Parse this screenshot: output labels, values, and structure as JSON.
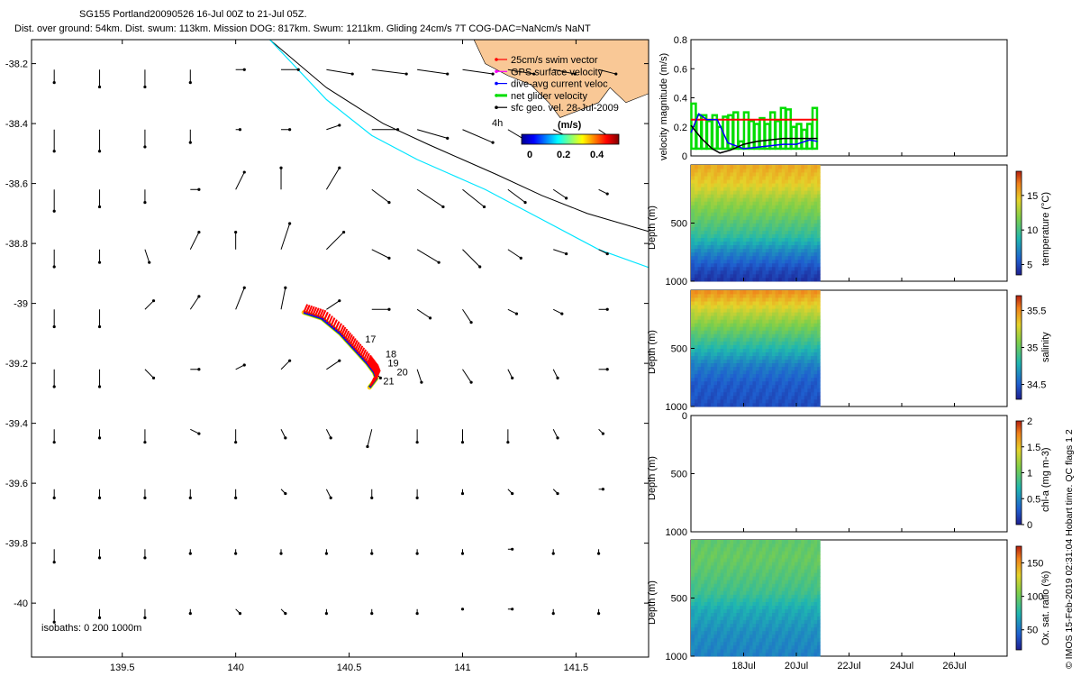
{
  "title": {
    "line1": "SG155 Portland20090526 16-Jul 00Z to 21-Jul 05Z.",
    "line2": "Dist. over ground: 54km. Dist. swum: 113km. Mission DOG: 817km. Swum: 1211km. Gliding 24cm/s 7T COG-DAC=NaNcm/s NaNT"
  },
  "copyright": "© IMOS 15-Feb-2019 02:31:04 Hobart time. QC flags 1  2",
  "colors": {
    "land": "#f9c896",
    "coast_1000m": "#00e5ff",
    "isobath_200": "#000000",
    "track_red": "#ff0000",
    "track_blue": "#0000ff",
    "track_green": "#00dd00",
    "track_yellow": "#ffcc00"
  },
  "chart_data": [
    {
      "type": "scatter",
      "name": "map",
      "xlim": [
        139.1,
        141.82
      ],
      "ylim": [
        -40.18,
        -38.12
      ],
      "xticks": [
        139.5,
        140,
        140.5,
        141,
        141.5
      ],
      "yticks": [
        -38.2,
        -38.4,
        -38.6,
        -38.8,
        -39,
        -39.2,
        -39.4,
        -39.6,
        -39.8,
        -40
      ],
      "legend": {
        "placement": "top-right",
        "items": [
          {
            "label": "25cm/s swim vector",
            "color": "#ff0000"
          },
          {
            "label": "GPS surface velocity",
            "color": "#ff00ff"
          },
          {
            "label": "dive-avg current veloc",
            "color": "#0000ff"
          },
          {
            "label": "net glider velocity",
            "color": "#00dd00"
          },
          {
            "label": "sfc geo. vel. 28-Jul-2009",
            "color": "#000000"
          }
        ],
        "vector_scale_label": "4h",
        "colorbar_title": "(m/s)",
        "colorbar_ticks": [
          0,
          0.2,
          0.4
        ]
      },
      "isobaths_label": "isobaths: 0   200   1000m",
      "track": [
        [
          140.3,
          -39.03
        ],
        [
          140.38,
          -39.05
        ],
        [
          140.46,
          -39.1
        ],
        [
          140.52,
          -39.15
        ],
        [
          140.58,
          -39.2
        ],
        [
          140.61,
          -39.23
        ],
        [
          140.62,
          -39.25
        ],
        [
          140.59,
          -39.28
        ]
      ],
      "day_labels": [
        {
          "text": "17",
          "lon": 140.57,
          "lat": -39.13
        },
        {
          "text": "18",
          "lon": 140.66,
          "lat": -39.18
        },
        {
          "text": "19",
          "lon": 140.67,
          "lat": -39.21
        },
        {
          "text": "20",
          "lon": 140.71,
          "lat": -39.24
        },
        {
          "text": "21",
          "lon": 140.65,
          "lat": -39.27
        }
      ],
      "coast_200m": [
        [
          140.15,
          -38.12
        ],
        [
          140.4,
          -38.28
        ],
        [
          140.65,
          -38.4
        ],
        [
          140.85,
          -38.47
        ],
        [
          141.0,
          -38.52
        ],
        [
          141.15,
          -38.57
        ],
        [
          141.35,
          -38.64
        ],
        [
          141.55,
          -38.7
        ],
        [
          141.82,
          -38.76
        ]
      ],
      "coast_1000m": [
        [
          140.15,
          -38.12
        ],
        [
          140.4,
          -38.32
        ],
        [
          140.6,
          -38.44
        ],
        [
          140.8,
          -38.52
        ],
        [
          140.95,
          -38.57
        ],
        [
          141.1,
          -38.62
        ],
        [
          141.35,
          -38.72
        ],
        [
          141.6,
          -38.82
        ],
        [
          141.82,
          -38.88
        ]
      ],
      "current_field_lon": [
        139.2,
        139.4,
        139.6,
        139.8,
        140.0,
        140.2,
        140.4,
        140.6,
        140.8,
        141.0,
        141.2,
        141.4,
        141.6
      ],
      "current_field_lat": [
        -38.22,
        -38.42,
        -38.62,
        -38.82,
        -39.02,
        -39.22,
        -39.42,
        -39.62,
        -39.82,
        -40.02
      ],
      "current_field_uv": [
        [
          [
            0.0,
            -0.03
          ],
          [
            0.0,
            -0.04
          ],
          [
            0.0,
            -0.04
          ],
          [
            0.0,
            -0.03
          ],
          [
            0.02,
            0.0
          ],
          [
            0.04,
            0.0
          ],
          [
            0.06,
            -0.01
          ],
          [
            0.08,
            -0.01
          ],
          [
            0.07,
            -0.01
          ],
          [
            0.07,
            -0.01
          ],
          [
            0.06,
            -0.01
          ],
          [
            0.05,
            -0.01
          ],
          [
            0.04,
            -0.01
          ]
        ],
        [
          [
            0.0,
            -0.05
          ],
          [
            0.0,
            -0.05
          ],
          [
            0.0,
            -0.04
          ],
          [
            0.0,
            -0.03
          ],
          [
            0.01,
            0.0
          ],
          [
            0.02,
            0.0
          ],
          [
            0.03,
            0.01
          ],
          [
            0.06,
            0.0
          ],
          [
            0.07,
            -0.02
          ],
          [
            0.07,
            -0.03
          ],
          [
            0.05,
            -0.03
          ],
          [
            0.04,
            -0.02
          ],
          [
            0.03,
            -0.02
          ]
        ],
        [
          [
            0.0,
            -0.05
          ],
          [
            0.0,
            -0.04
          ],
          [
            0.0,
            -0.03
          ],
          [
            0.02,
            0.0
          ],
          [
            0.02,
            0.04
          ],
          [
            0.0,
            0.05
          ],
          [
            0.03,
            0.05
          ],
          [
            0.04,
            -0.03
          ],
          [
            0.06,
            -0.04
          ],
          [
            0.05,
            -0.04
          ],
          [
            0.04,
            -0.03
          ],
          [
            0.03,
            -0.02
          ],
          [
            0.02,
            -0.01
          ]
        ],
        [
          [
            0.0,
            -0.04
          ],
          [
            0.0,
            -0.03
          ],
          [
            0.01,
            -0.03
          ],
          [
            0.02,
            0.04
          ],
          [
            0.0,
            0.04
          ],
          [
            0.02,
            0.06
          ],
          [
            0.04,
            0.04
          ],
          [
            0.04,
            -0.02
          ],
          [
            0.05,
            -0.03
          ],
          [
            0.04,
            -0.04
          ],
          [
            0.03,
            -0.02
          ],
          [
            0.03,
            -0.01
          ],
          [
            0.02,
            -0.01
          ]
        ],
        [
          [
            0.0,
            -0.04
          ],
          [
            0.0,
            -0.04
          ],
          [
            0.02,
            0.02
          ],
          [
            0.02,
            0.03
          ],
          [
            0.02,
            0.05
          ],
          [
            0.01,
            0.05
          ],
          [
            0.03,
            0.02
          ],
          [
            0.04,
            0.0
          ],
          [
            0.03,
            -0.02
          ],
          [
            0.02,
            -0.03
          ],
          [
            0.02,
            -0.01
          ],
          [
            0.02,
            -0.01
          ],
          [
            0.02,
            0.0
          ]
        ],
        [
          [
            0.0,
            -0.04
          ],
          [
            0.0,
            -0.04
          ],
          [
            0.02,
            -0.02
          ],
          [
            0.02,
            0.0
          ],
          [
            0.02,
            0.01
          ],
          [
            0.02,
            0.02
          ],
          [
            0.03,
            0.02
          ],
          [
            0.02,
            -0.02
          ],
          [
            0.01,
            -0.03
          ],
          [
            0.02,
            -0.03
          ],
          [
            0.01,
            -0.02
          ],
          [
            0.01,
            -0.02
          ],
          [
            0.02,
            0.0
          ]
        ],
        [
          [
            0.0,
            -0.03
          ],
          [
            0.0,
            -0.02
          ],
          [
            0.0,
            -0.03
          ],
          [
            0.02,
            -0.01
          ],
          [
            0.0,
            -0.03
          ],
          [
            0.01,
            -0.02
          ],
          [
            0.01,
            -0.02
          ],
          [
            -0.01,
            -0.04
          ],
          [
            0.0,
            -0.03
          ],
          [
            0.0,
            -0.03
          ],
          [
            0.0,
            -0.03
          ],
          [
            0.01,
            -0.02
          ],
          [
            0.01,
            -0.01
          ]
        ],
        [
          [
            0.0,
            -0.02
          ],
          [
            0.0,
            -0.02
          ],
          [
            0.0,
            -0.02
          ],
          [
            0.0,
            -0.02
          ],
          [
            0.0,
            -0.02
          ],
          [
            0.01,
            -0.01
          ],
          [
            0.01,
            -0.02
          ],
          [
            0.0,
            -0.02
          ],
          [
            0.0,
            -0.02
          ],
          [
            0.0,
            -0.01
          ],
          [
            0.01,
            -0.01
          ],
          [
            0.01,
            -0.01
          ],
          [
            0.01,
            0.0
          ]
        ],
        [
          [
            0.0,
            -0.03
          ],
          [
            0.0,
            -0.02
          ],
          [
            0.0,
            -0.02
          ],
          [
            0.0,
            -0.01
          ],
          [
            0.0,
            -0.01
          ],
          [
            0.0,
            -0.01
          ],
          [
            0.0,
            -0.01
          ],
          [
            0.0,
            -0.01
          ],
          [
            0.0,
            -0.01
          ],
          [
            0.0,
            -0.01
          ],
          [
            0.01,
            0.0
          ],
          [
            0.0,
            -0.01
          ],
          [
            0.0,
            -0.01
          ]
        ],
        [
          [
            0.0,
            -0.03
          ],
          [
            0.0,
            -0.02
          ],
          [
            0.0,
            -0.02
          ],
          [
            0.0,
            -0.01
          ],
          [
            0.01,
            -0.01
          ],
          [
            0.01,
            -0.01
          ],
          [
            0.0,
            -0.01
          ],
          [
            0.0,
            -0.01
          ],
          [
            0.0,
            -0.01
          ],
          [
            0.0,
            0.0
          ],
          [
            0.01,
            0.0
          ],
          [
            0.0,
            -0.01
          ],
          [
            0.0,
            -0.01
          ]
        ]
      ]
    },
    {
      "type": "line",
      "name": "velocity",
      "ylabel": "velocity magnitude (m/s)",
      "ylim": [
        0,
        0.8
      ],
      "yticks": [
        0,
        0.2,
        0.4,
        0.6,
        0.8
      ],
      "xlim": [
        16,
        28
      ],
      "series": [
        {
          "name": "swim",
          "color": "#ff0000",
          "x": [
            16.0,
            20.8
          ],
          "y": [
            0.25,
            0.25
          ]
        },
        {
          "name": "dac",
          "color": "#0000ff",
          "x": [
            16.0,
            16.3,
            16.6,
            17.0,
            17.4,
            18.0,
            18.5,
            19.0,
            19.5,
            20.0,
            20.5,
            20.8
          ],
          "y": [
            0.16,
            0.29,
            0.25,
            0.25,
            0.09,
            0.05,
            0.06,
            0.07,
            0.08,
            0.08,
            0.11,
            0.1
          ]
        },
        {
          "name": "sfc",
          "color": "#000000",
          "x": [
            16.0,
            16.4,
            16.8,
            17.1,
            17.5,
            18.0,
            18.5,
            19.0,
            19.5,
            20.0,
            20.5,
            20.8
          ],
          "y": [
            0.21,
            0.12,
            0.05,
            0.02,
            0.04,
            0.08,
            0.1,
            0.11,
            0.12,
            0.12,
            0.12,
            0.12
          ]
        }
      ],
      "net_bars_x": [
        16.1,
        16.3,
        16.5,
        16.7,
        16.9,
        17.1,
        17.3,
        17.5,
        17.7,
        17.9,
        18.1,
        18.3,
        18.5,
        18.7,
        18.9,
        19.1,
        19.3,
        19.5,
        19.7,
        19.9,
        20.1,
        20.3,
        20.5,
        20.7
      ],
      "net_bars_y": [
        0.36,
        0.28,
        0.28,
        0.24,
        0.28,
        0.2,
        0.27,
        0.28,
        0.3,
        0.1,
        0.3,
        0.24,
        0.22,
        0.26,
        0.22,
        0.3,
        0.24,
        0.33,
        0.32,
        0.2,
        0.22,
        0.18,
        0.22,
        0.33
      ],
      "net_color": "#00dd00"
    },
    {
      "type": "heatmap",
      "name": "temperature",
      "ylabel": "Depth (m)",
      "clabel": "temperature (°C)",
      "yticks": [
        500,
        1000
      ],
      "cticks": [
        5,
        10,
        15
      ],
      "clim": [
        3.5,
        18.5
      ],
      "xlim": [
        16,
        28
      ],
      "data_xlim": [
        16,
        20.9
      ],
      "profile": [
        [
          0,
          15.5
        ],
        [
          150,
          14.5
        ],
        [
          300,
          12.5
        ],
        [
          450,
          11.0
        ],
        [
          600,
          9.5
        ],
        [
          750,
          7.0
        ],
        [
          900,
          5.0
        ],
        [
          1000,
          4.3
        ]
      ],
      "colorbar_labels": [
        "15",
        "10",
        "5"
      ]
    },
    {
      "type": "heatmap",
      "name": "salinity",
      "ylabel": "Depth (m)",
      "clabel": "salinity",
      "yticks": [
        500,
        1000
      ],
      "cticks": [
        34.5,
        35,
        35.5
      ],
      "clim": [
        34.3,
        35.7
      ],
      "xlim": [
        16,
        28
      ],
      "data_xlim": [
        16,
        20.9
      ],
      "profile": [
        [
          0,
          35.5
        ],
        [
          100,
          35.35
        ],
        [
          200,
          35.2
        ],
        [
          350,
          35.0
        ],
        [
          500,
          34.8
        ],
        [
          650,
          34.6
        ],
        [
          800,
          34.5
        ],
        [
          1000,
          34.45
        ]
      ],
      "colorbar_labels": [
        "35.5",
        "35",
        "34.5"
      ]
    },
    {
      "type": "heatmap",
      "name": "chl-a",
      "ylabel": "Depth (m)",
      "clabel": "chl-a (mg m-3)",
      "yticks": [
        0,
        500,
        1000
      ],
      "cticks": [
        0,
        0.5,
        1,
        1.5,
        2
      ],
      "clim": [
        0,
        2
      ],
      "xlim": [
        16,
        28
      ],
      "data_xlim": [
        16,
        16
      ],
      "profile": [],
      "colorbar_labels": [
        "2",
        "1.5",
        "1",
        "0.5",
        "0"
      ]
    },
    {
      "type": "heatmap",
      "name": "oxygen",
      "ylabel": "Depth (m)",
      "clabel": "Ox. sat. ratio (%)",
      "yticks": [
        500,
        1000
      ],
      "cticks": [
        50,
        100,
        150
      ],
      "clim": [
        20,
        175
      ],
      "xlim": [
        16,
        28
      ],
      "data_xlim": [
        16,
        20.9
      ],
      "profile": [
        [
          0,
          95
        ],
        [
          150,
          98
        ],
        [
          300,
          92
        ],
        [
          450,
          85
        ],
        [
          600,
          70
        ],
        [
          800,
          60
        ],
        [
          1000,
          55
        ]
      ],
      "colorbar_labels": [
        "150",
        "100",
        "50"
      ],
      "xtick_labels": [
        "18Jul",
        "20Jul",
        "22Jul",
        "24Jul",
        "26Jul"
      ],
      "xticks": [
        18,
        20,
        22,
        24,
        26
      ]
    }
  ]
}
